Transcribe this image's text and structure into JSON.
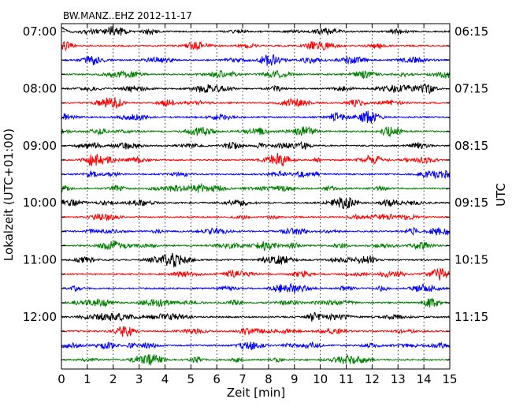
{
  "chart_data": {
    "type": "line",
    "title": "BW.MANZ..EHZ 2012-11-17",
    "xlabel": "Zeit  [min]",
    "ylabel_left": "Lokalzeit (UTC+01:00)",
    "ylabel_right": "UTC",
    "xlim": [
      0,
      15
    ],
    "x_ticks": [
      "0",
      "1",
      "2",
      "3",
      "4",
      "5",
      "6",
      "7",
      "8",
      "9",
      "10",
      "11",
      "12",
      "13",
      "14",
      "15"
    ],
    "grid": "vertical dotted at each minute",
    "trace_count": 24,
    "minutes_per_trace": 15,
    "trace_colors": [
      "#000000",
      "#ff0000",
      "#0000ff",
      "#008000"
    ],
    "left_tick_labels": [
      "07:00",
      "08:00",
      "09:00",
      "10:00",
      "11:00",
      "12:00"
    ],
    "right_tick_labels": [
      "06:15",
      "07:15",
      "08:15",
      "09:15",
      "10:15",
      "11:15"
    ],
    "label_every_n_traces": 4,
    "label_first_trace_index": 0
  }
}
